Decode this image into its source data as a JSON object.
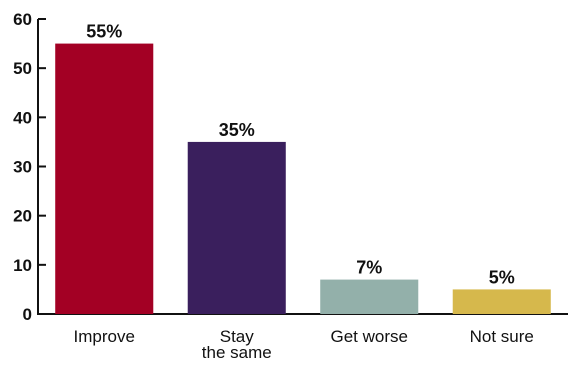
{
  "chart_data": {
    "type": "bar",
    "categories": [
      [
        "Improve"
      ],
      [
        "Stay",
        "the same"
      ],
      [
        "Get worse"
      ],
      [
        "Not sure"
      ]
    ],
    "values": [
      55,
      35,
      7,
      5
    ],
    "data_labels": [
      "55%",
      "35%",
      "7%",
      "5%"
    ],
    "colors": [
      "#a30024",
      "#3a1f5d",
      "#93b0aa",
      "#d6b84c"
    ],
    "ylim": [
      0,
      60
    ],
    "yticks": [
      0,
      10,
      20,
      30,
      40,
      50,
      60
    ],
    "grid": false,
    "title": "",
    "xlabel": "",
    "ylabel": ""
  }
}
